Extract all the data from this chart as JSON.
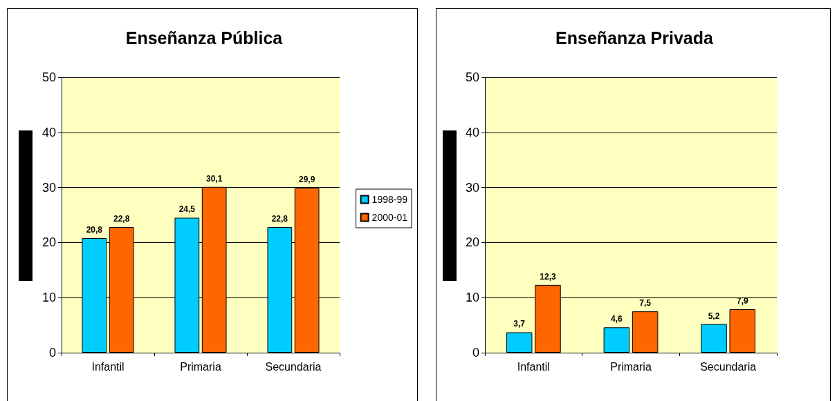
{
  "chart_data": [
    {
      "type": "bar",
      "title": "Enseñanza Pública",
      "categories": [
        "Infantil",
        "Primaria",
        "Secundaria"
      ],
      "series": [
        {
          "name": "1998-99",
          "color": "#00ccff",
          "values": [
            20.8,
            24.5,
            22.8
          ],
          "value_labels": [
            "20,8",
            "24,5",
            "22,8"
          ]
        },
        {
          "name": "2000-01",
          "color": "#ff6600",
          "values": [
            22.8,
            30.1,
            29.9
          ],
          "value_labels": [
            "22,8",
            "30,1",
            "29,9"
          ]
        }
      ],
      "ylim": [
        0,
        50
      ],
      "yticks": [
        0,
        10,
        20,
        30,
        40,
        50
      ],
      "grid": "y",
      "legend": "right"
    },
    {
      "type": "bar",
      "title": "Enseñanza Privada",
      "categories": [
        "Infantil",
        "Primaria",
        "Secundaria"
      ],
      "series": [
        {
          "color": "#00ccff",
          "values": [
            3.7,
            4.6,
            5.2
          ],
          "value_labels": [
            "3,7",
            "4,6",
            "5,2"
          ]
        },
        {
          "color": "#ff6600",
          "values": [
            12.3,
            7.5,
            7.9
          ],
          "value_labels": [
            "12,3",
            "7,5",
            "7,9"
          ]
        }
      ],
      "ylim": [
        0,
        50
      ],
      "yticks": [
        0,
        10,
        20,
        30,
        40,
        50
      ],
      "grid": "y"
    }
  ]
}
